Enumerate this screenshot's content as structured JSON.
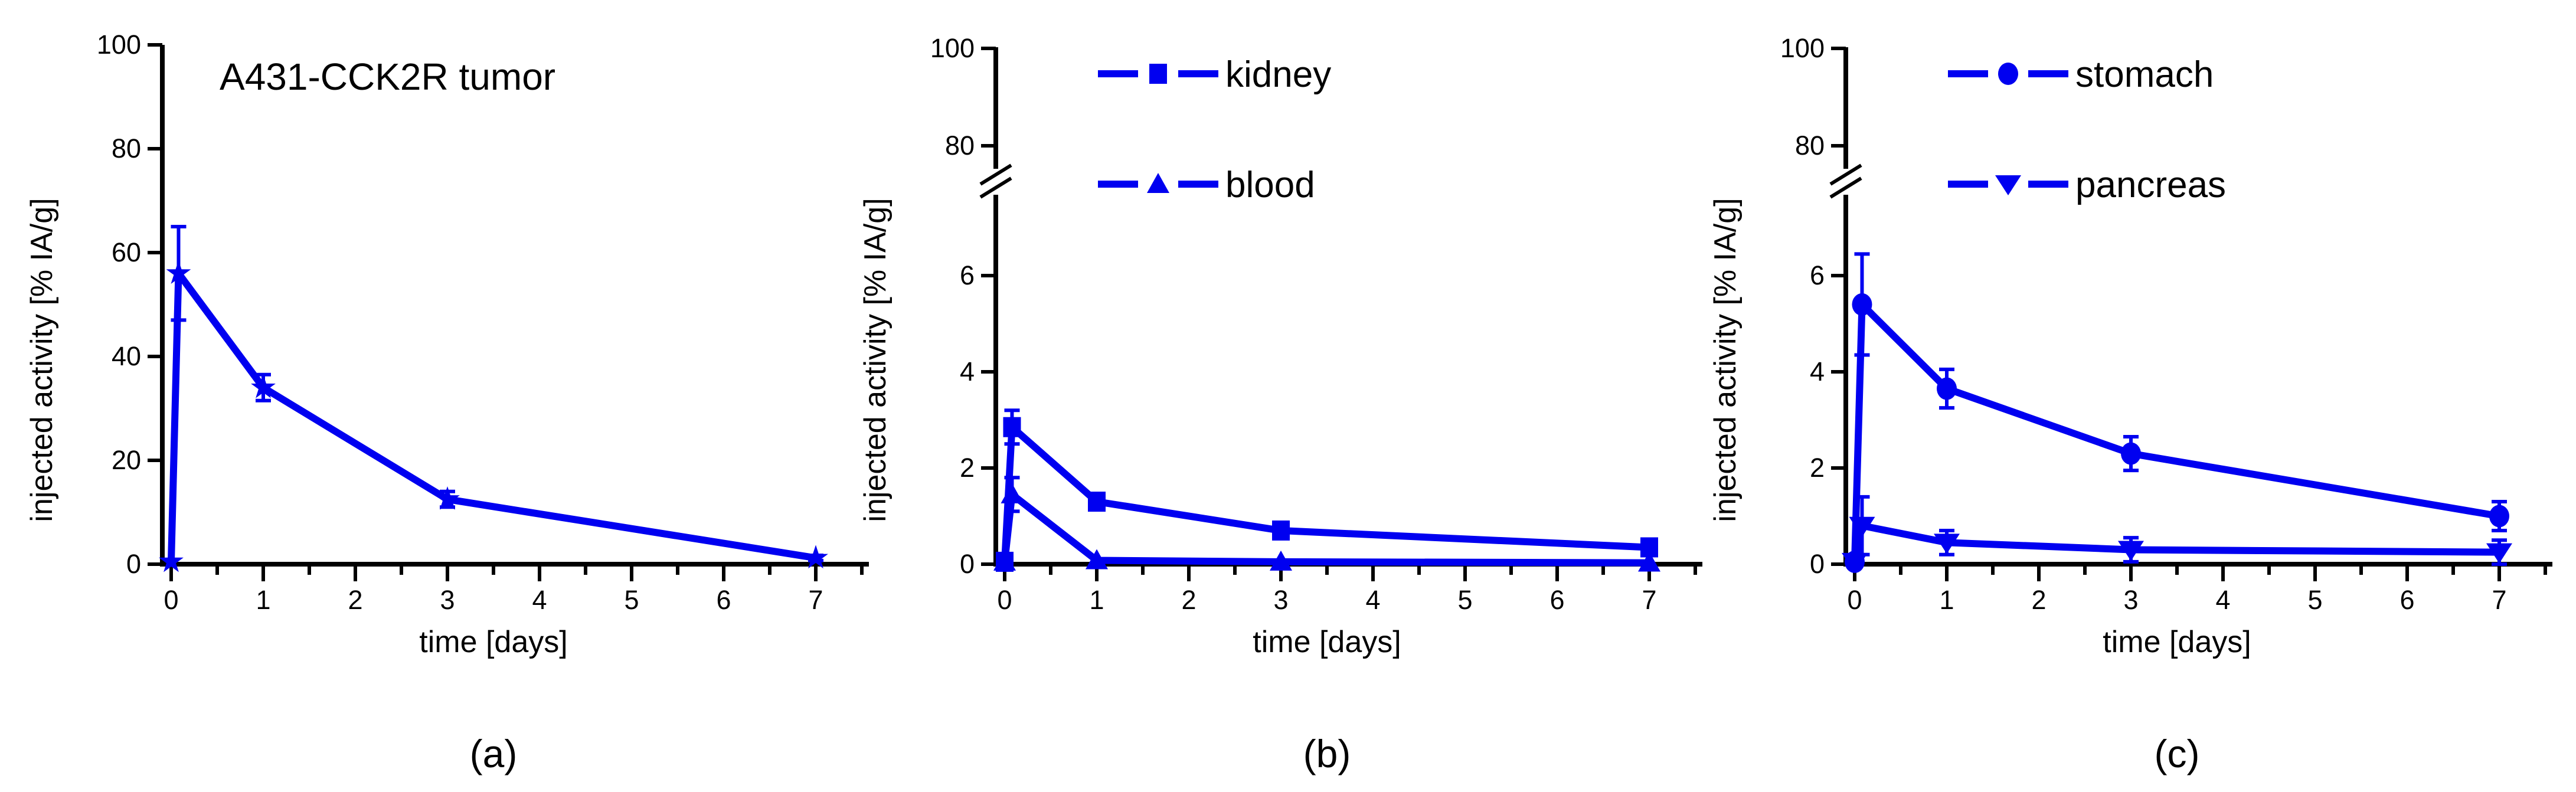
{
  "figure": {
    "background": "#ffffff",
    "accent_color": "#0000f0",
    "axis_color": "#000000"
  },
  "chart_data": [
    {
      "id": "a",
      "type": "line",
      "panel_label": "(a)",
      "title": "A431-CCK2R tumor",
      "xlabel": "time [days]",
      "ylabel": "injected activity [% IA/g]",
      "xlim": [
        -0.1,
        7.5
      ],
      "x_major_ticks": [
        0,
        1,
        2,
        3,
        4,
        5,
        6,
        7
      ],
      "x_minor_ticks": [
        0.5,
        1.5,
        2.5,
        3.5,
        4.5,
        5.5,
        6.5,
        7.5
      ],
      "y_axis": {
        "broken": false,
        "lim": [
          0,
          100
        ],
        "major_ticks": [
          0,
          20,
          40,
          60,
          80,
          100
        ]
      },
      "legend": null,
      "series": [
        {
          "name": "A431-CCK2R tumor",
          "marker": "star",
          "points": [
            {
              "x": 0,
              "y": 0.5,
              "err": 0
            },
            {
              "x": 0.08,
              "y": 56,
              "err": 9
            },
            {
              "x": 1,
              "y": 34,
              "err": 2.5
            },
            {
              "x": 3,
              "y": 12.5,
              "err": 1.5
            },
            {
              "x": 7,
              "y": 1.2,
              "err": 0.5
            }
          ]
        }
      ]
    },
    {
      "id": "b",
      "type": "line",
      "panel_label": "(b)",
      "title": null,
      "xlabel": "time [days]",
      "ylabel": "injected activity [% IA/g]",
      "xlim": [
        -0.1,
        7.5
      ],
      "x_major_ticks": [
        0,
        1,
        2,
        3,
        4,
        5,
        6,
        7
      ],
      "x_minor_ticks": [
        0.5,
        1.5,
        2.5,
        3.5,
        4.5,
        5.5,
        6.5,
        7.5
      ],
      "y_axis": {
        "broken": true,
        "lower": {
          "lim": [
            0,
            7.5
          ],
          "major_ticks": [
            0,
            2,
            4,
            6
          ]
        },
        "upper": {
          "lim": [
            80,
            100
          ],
          "major_ticks": [
            80,
            100
          ]
        }
      },
      "legend": {
        "entries": [
          {
            "label": "kidney",
            "marker": "square"
          },
          {
            "label": "blood",
            "marker": "triangle-up"
          }
        ]
      },
      "series": [
        {
          "name": "kidney",
          "marker": "square",
          "points": [
            {
              "x": 0,
              "y": 0.05,
              "err": 0
            },
            {
              "x": 0.08,
              "y": 2.85,
              "err": 0.35
            },
            {
              "x": 1,
              "y": 1.3,
              "err": 0.15
            },
            {
              "x": 3,
              "y": 0.7,
              "err": 0.1
            },
            {
              "x": 7,
              "y": 0.35,
              "err": 0.12
            }
          ]
        },
        {
          "name": "blood",
          "marker": "triangle-up",
          "points": [
            {
              "x": 0,
              "y": 0.05,
              "err": 0
            },
            {
              "x": 0.08,
              "y": 1.45,
              "err": 0.35
            },
            {
              "x": 1,
              "y": 0.08,
              "err": 0
            },
            {
              "x": 3,
              "y": 0.05,
              "err": 0
            },
            {
              "x": 7,
              "y": 0.03,
              "err": 0
            }
          ]
        }
      ]
    },
    {
      "id": "c",
      "type": "line",
      "panel_label": "(c)",
      "title": null,
      "xlabel": "time [days]",
      "ylabel": "injected activity [% IA/g]",
      "xlim": [
        -0.1,
        7.5
      ],
      "x_major_ticks": [
        0,
        1,
        2,
        3,
        4,
        5,
        6,
        7
      ],
      "x_minor_ticks": [
        0.5,
        1.5,
        2.5,
        3.5,
        4.5,
        5.5,
        6.5,
        7.5
      ],
      "y_axis": {
        "broken": true,
        "lower": {
          "lim": [
            0,
            7.5
          ],
          "major_ticks": [
            0,
            2,
            4,
            6
          ]
        },
        "upper": {
          "lim": [
            80,
            100
          ],
          "major_ticks": [
            80,
            100
          ]
        }
      },
      "legend": {
        "entries": [
          {
            "label": "stomach",
            "marker": "circle"
          },
          {
            "label": "pancreas",
            "marker": "triangle-down"
          }
        ]
      },
      "series": [
        {
          "name": "stomach",
          "marker": "circle",
          "points": [
            {
              "x": 0,
              "y": 0.05,
              "err": 0
            },
            {
              "x": 0.08,
              "y": 5.4,
              "err": 1.05
            },
            {
              "x": 1,
              "y": 3.65,
              "err": 0.4
            },
            {
              "x": 3,
              "y": 2.3,
              "err": 0.35
            },
            {
              "x": 7,
              "y": 1.0,
              "err": 0.3
            }
          ]
        },
        {
          "name": "pancreas",
          "marker": "triangle-down",
          "points": [
            {
              "x": 0,
              "y": 0.05,
              "err": 0
            },
            {
              "x": 0.08,
              "y": 0.8,
              "err": 0.6
            },
            {
              "x": 1,
              "y": 0.45,
              "err": 0.25
            },
            {
              "x": 3,
              "y": 0.3,
              "err": 0.25
            },
            {
              "x": 7,
              "y": 0.25,
              "err": 0.25
            }
          ]
        }
      ]
    }
  ]
}
